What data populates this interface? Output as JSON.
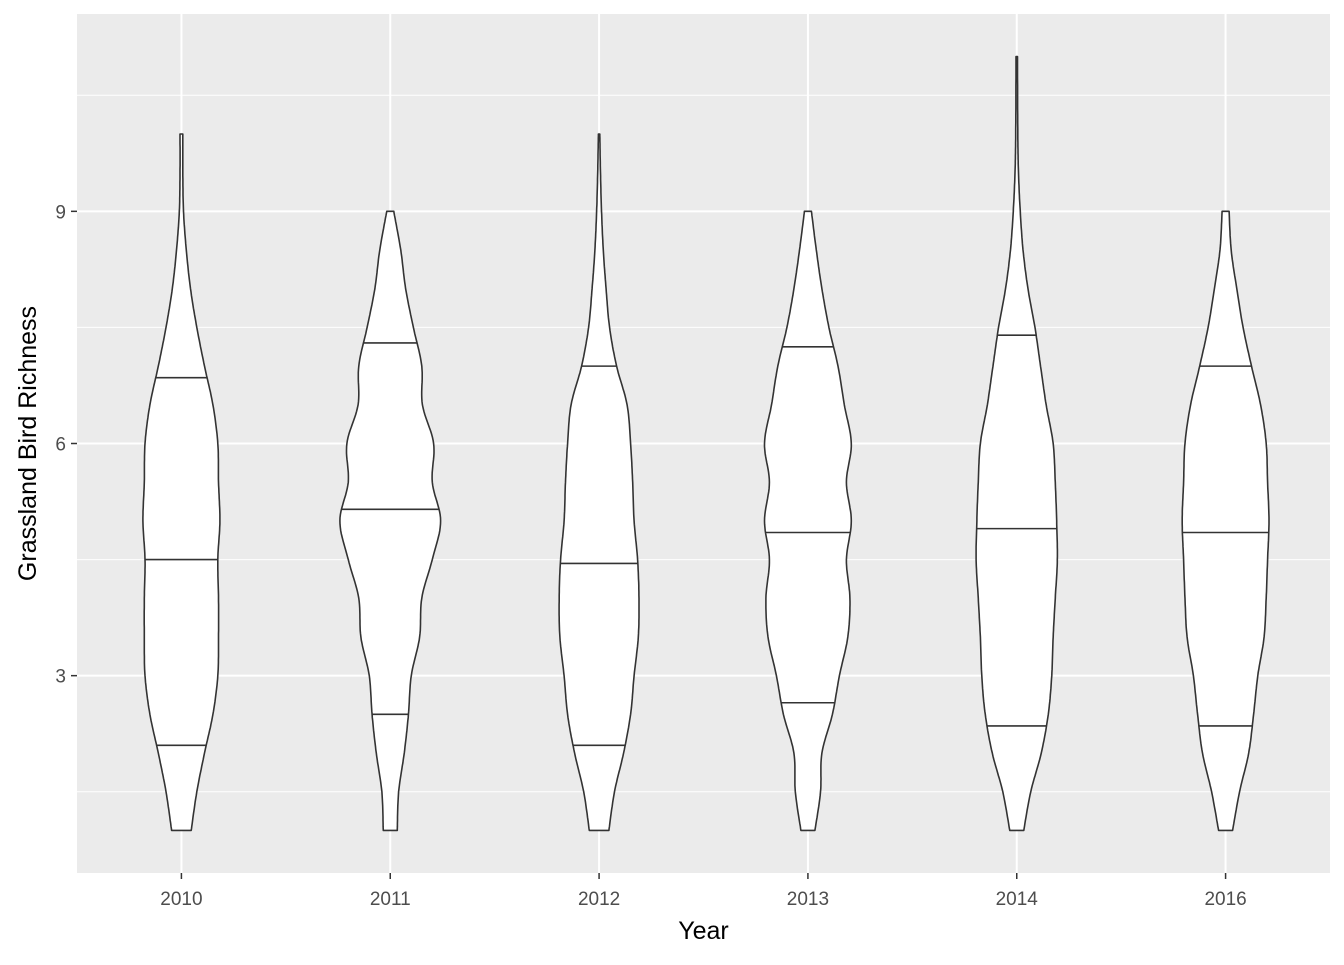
{
  "chart_data": {
    "type": "violin",
    "title": "",
    "xlabel": "Year",
    "ylabel": "Grassland Bird Richness",
    "categories": [
      "2010",
      "2011",
      "2012",
      "2013",
      "2014",
      "2016"
    ],
    "y_ticks": [
      3,
      6,
      9
    ],
    "y_tick_labels": [
      "3",
      "6",
      "9"
    ],
    "ylim": [
      0.45,
      11.55
    ],
    "grid": true,
    "legend": "none",
    "colors": {
      "panel_background": "#ebebeb",
      "grid_major": "#ffffff",
      "violin_fill": "#ffffff",
      "violin_outline": "#333333",
      "tick_label": "#4d4d4d"
    },
    "violins": [
      {
        "category": "2010",
        "quantiles": [
          2.1,
          4.5,
          6.85
        ],
        "profile": [
          [
            1,
            0.14
          ],
          [
            1.5,
            0.22
          ],
          [
            2,
            0.33
          ],
          [
            2.5,
            0.45
          ],
          [
            3,
            0.52
          ],
          [
            3.5,
            0.53
          ],
          [
            4,
            0.53
          ],
          [
            4.5,
            0.52
          ],
          [
            5,
            0.55
          ],
          [
            5.5,
            0.53
          ],
          [
            6,
            0.52
          ],
          [
            6.5,
            0.45
          ],
          [
            7,
            0.33
          ],
          [
            7.5,
            0.22
          ],
          [
            8,
            0.13
          ],
          [
            8.5,
            0.07
          ],
          [
            9,
            0.03
          ],
          [
            9.5,
            0.02
          ],
          [
            10,
            0.02
          ]
        ]
      },
      {
        "category": "2011",
        "quantiles": [
          2.5,
          5.15,
          7.3
        ],
        "profile": [
          [
            1,
            0.1
          ],
          [
            1.5,
            0.12
          ],
          [
            2,
            0.2
          ],
          [
            2.5,
            0.26
          ],
          [
            3,
            0.3
          ],
          [
            3.5,
            0.42
          ],
          [
            4,
            0.45
          ],
          [
            4.5,
            0.6
          ],
          [
            5,
            0.72
          ],
          [
            5.5,
            0.6
          ],
          [
            6,
            0.62
          ],
          [
            6.5,
            0.46
          ],
          [
            7,
            0.45
          ],
          [
            7.5,
            0.33
          ],
          [
            8,
            0.22
          ],
          [
            8.5,
            0.15
          ],
          [
            9,
            0.05
          ]
        ]
      },
      {
        "category": "2012",
        "quantiles": [
          2.1,
          4.45,
          7.0
        ],
        "profile": [
          [
            1,
            0.14
          ],
          [
            1.5,
            0.22
          ],
          [
            2,
            0.35
          ],
          [
            2.5,
            0.45
          ],
          [
            3,
            0.5
          ],
          [
            3.5,
            0.56
          ],
          [
            4,
            0.57
          ],
          [
            4.5,
            0.55
          ],
          [
            5,
            0.5
          ],
          [
            5.5,
            0.48
          ],
          [
            6,
            0.45
          ],
          [
            6.5,
            0.4
          ],
          [
            7,
            0.25
          ],
          [
            7.5,
            0.15
          ],
          [
            8,
            0.1
          ],
          [
            8.5,
            0.06
          ],
          [
            9,
            0.035
          ],
          [
            9.5,
            0.02
          ],
          [
            10,
            0.01
          ]
        ]
      },
      {
        "category": "2013",
        "quantiles": [
          2.65,
          4.85,
          7.25
        ],
        "profile": [
          [
            1,
            0.1
          ],
          [
            1.5,
            0.18
          ],
          [
            2,
            0.2
          ],
          [
            2.5,
            0.35
          ],
          [
            3,
            0.45
          ],
          [
            3.5,
            0.57
          ],
          [
            4,
            0.6
          ],
          [
            4.5,
            0.55
          ],
          [
            5,
            0.62
          ],
          [
            5.5,
            0.55
          ],
          [
            6,
            0.62
          ],
          [
            6.5,
            0.52
          ],
          [
            7,
            0.43
          ],
          [
            7.5,
            0.3
          ],
          [
            8,
            0.2
          ],
          [
            8.5,
            0.12
          ],
          [
            9,
            0.05
          ]
        ]
      },
      {
        "category": "2014",
        "quantiles": [
          2.35,
          4.9,
          7.4
        ],
        "profile": [
          [
            1,
            0.1
          ],
          [
            1.5,
            0.2
          ],
          [
            2,
            0.35
          ],
          [
            2.5,
            0.45
          ],
          [
            3,
            0.5
          ],
          [
            3.5,
            0.52
          ],
          [
            4,
            0.55
          ],
          [
            4.5,
            0.58
          ],
          [
            5,
            0.57
          ],
          [
            5.5,
            0.55
          ],
          [
            6,
            0.52
          ],
          [
            6.5,
            0.42
          ],
          [
            7,
            0.34
          ],
          [
            7.5,
            0.26
          ],
          [
            8,
            0.16
          ],
          [
            8.5,
            0.09
          ],
          [
            9,
            0.05
          ],
          [
            9.5,
            0.025
          ],
          [
            10,
            0.015
          ],
          [
            11,
            0.01
          ]
        ]
      },
      {
        "category": "2016",
        "quantiles": [
          2.35,
          4.85,
          7.0
        ],
        "profile": [
          [
            1,
            0.1
          ],
          [
            1.5,
            0.2
          ],
          [
            2,
            0.33
          ],
          [
            2.5,
            0.4
          ],
          [
            3,
            0.46
          ],
          [
            3.5,
            0.55
          ],
          [
            4,
            0.58
          ],
          [
            4.5,
            0.6
          ],
          [
            5,
            0.62
          ],
          [
            5.5,
            0.6
          ],
          [
            6,
            0.58
          ],
          [
            6.5,
            0.5
          ],
          [
            7,
            0.37
          ],
          [
            7.5,
            0.25
          ],
          [
            8,
            0.16
          ],
          [
            8.5,
            0.08
          ],
          [
            9,
            0.05
          ]
        ]
      }
    ]
  }
}
